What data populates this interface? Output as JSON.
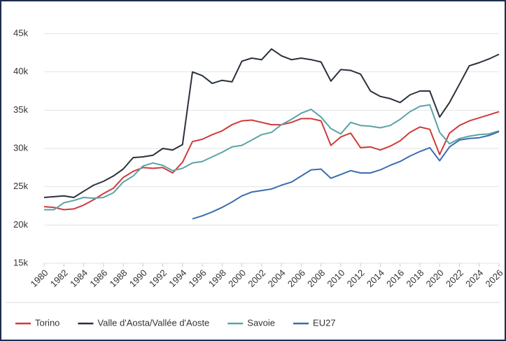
{
  "chart_data": {
    "type": "line",
    "x": [
      1980,
      1981,
      1982,
      1983,
      1984,
      1985,
      1986,
      1987,
      1988,
      1989,
      1990,
      1991,
      1992,
      1993,
      1994,
      1995,
      1996,
      1997,
      1998,
      1999,
      2000,
      2001,
      2002,
      2003,
      2004,
      2005,
      2006,
      2007,
      2008,
      2009,
      2010,
      2011,
      2012,
      2013,
      2014,
      2015,
      2016,
      2017,
      2018,
      2019,
      2020,
      2021,
      2022,
      2023,
      2024,
      2025,
      2026
    ],
    "xlim": [
      1980,
      2026
    ],
    "xticks": [
      1980,
      1982,
      1984,
      1986,
      1988,
      1990,
      1992,
      1994,
      1996,
      1998,
      2000,
      2002,
      2004,
      2006,
      2008,
      2010,
      2012,
      2014,
      2016,
      2018,
      2020,
      2022,
      2024,
      2026
    ],
    "ylim": [
      15000,
      45000
    ],
    "yticks": [
      {
        "value": 15000,
        "label": "15k"
      },
      {
        "value": 20000,
        "label": "20k"
      },
      {
        "value": 25000,
        "label": "25k"
      },
      {
        "value": 30000,
        "label": "30k"
      },
      {
        "value": 35000,
        "label": "35k"
      },
      {
        "value": 40000,
        "label": "40k"
      },
      {
        "value": 45000,
        "label": "45k"
      }
    ],
    "grid": true,
    "legend": "bottom",
    "series": [
      {
        "name": "Torino",
        "color": "#d23a3a",
        "values": [
          22400,
          22300,
          22000,
          22100,
          22600,
          23300,
          24100,
          24800,
          26200,
          27000,
          27500,
          27400,
          27500,
          26800,
          28200,
          30900,
          31200,
          31800,
          32300,
          33100,
          33600,
          33700,
          33400,
          33100,
          33100,
          33400,
          33900,
          33900,
          33600,
          30400,
          31500,
          32000,
          30100,
          30200,
          29800,
          30300,
          31000,
          32100,
          32800,
          32500,
          29200,
          32000,
          33000,
          33600,
          34000,
          34400,
          34800
        ]
      },
      {
        "name": "Valle d'Aosta/Vallée d'Aoste",
        "color": "#2a313c",
        "values": [
          23600,
          23700,
          23800,
          23600,
          24400,
          25200,
          25700,
          26400,
          27300,
          28800,
          28900,
          29100,
          30000,
          29800,
          30500,
          40000,
          39500,
          38500,
          38900,
          38700,
          41400,
          41800,
          41600,
          43000,
          42100,
          41600,
          41800,
          41600,
          41300,
          38800,
          40300,
          40200,
          39700,
          37500,
          36800,
          36500,
          36000,
          37000,
          37500,
          37500,
          34100,
          36000,
          38400,
          40800,
          41200,
          41700,
          42300
        ]
      },
      {
        "name": "Savoie",
        "color": "#5aa3a6",
        "values": [
          22000,
          22000,
          22900,
          23200,
          23600,
          23500,
          23600,
          24200,
          25600,
          26400,
          27700,
          28100,
          27800,
          27100,
          27400,
          28100,
          28300,
          28900,
          29500,
          30200,
          30400,
          31100,
          31800,
          32100,
          33100,
          33800,
          34600,
          35100,
          34100,
          32600,
          31900,
          33400,
          33000,
          32900,
          32700,
          33000,
          33800,
          34800,
          35500,
          35700,
          32100,
          30600,
          31300,
          31600,
          31800,
          31900,
          32300
        ]
      },
      {
        "name": "EU27",
        "color": "#3b6db0",
        "values": [
          null,
          null,
          null,
          null,
          null,
          null,
          null,
          null,
          null,
          null,
          null,
          null,
          null,
          null,
          null,
          20800,
          21200,
          21700,
          22300,
          23000,
          23800,
          24300,
          24500,
          24700,
          25200,
          25600,
          26400,
          27200,
          27300,
          26100,
          26600,
          27100,
          26800,
          26800,
          27200,
          27800,
          28300,
          29000,
          29600,
          30100,
          28400,
          30200,
          31100,
          31300,
          31400,
          31700,
          32200
        ]
      }
    ]
  }
}
